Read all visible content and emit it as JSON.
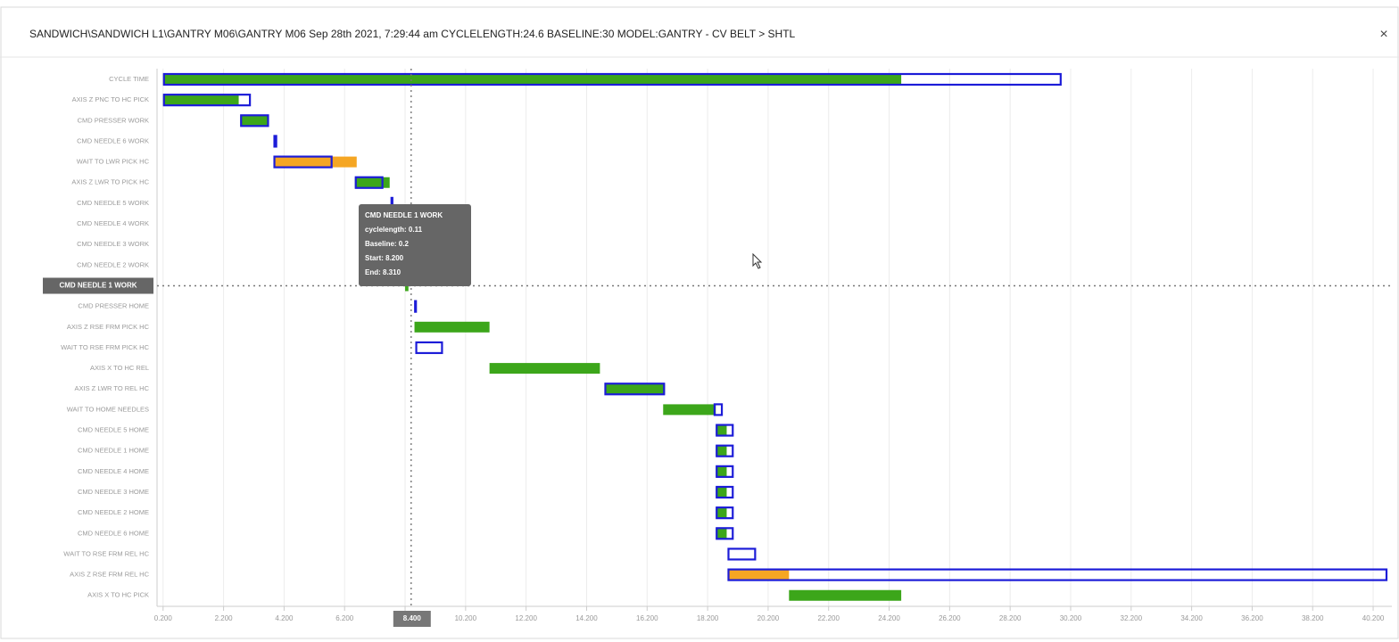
{
  "chart_data": {
    "type": "gantt",
    "title": "SANDWICH\\SANDWICH L1\\GANTRY M06\\GANTRY M06 Sep 28th 2021, 7:29:44 am CYCLELENGTH:24.6 BASELINE:30 MODEL:GANTRY - CV BELT > SHTL",
    "close_label": "×",
    "categories": [
      "CYCLE TIME",
      "AXIS Z PNC TO HC PICK",
      "CMD PRESSER WORK",
      "CMD NEEDLE 6 WORK",
      "WAIT TO LWR PICK HC",
      "AXIS Z LWR TO PICK HC",
      "CMD NEEDLE 5 WORK",
      "CMD NEEDLE 4 WORK",
      "CMD NEEDLE 3 WORK",
      "CMD NEEDLE 2 WORK",
      "CMD NEEDLE 1 WORK",
      "CMD PRESSER HOME",
      "AXIS Z RSE FRM PICK HC",
      "WAIT TO RSE FRM PICK HC",
      "AXIS X TO HC REL",
      "AXIS Z LWR TO REL HC",
      "WAIT TO HOME NEEDLES",
      "CMD NEEDLE 5 HOME",
      "CMD NEEDLE 1 HOME",
      "CMD NEEDLE 4 HOME",
      "CMD NEEDLE 3 HOME",
      "CMD NEEDLE 2 HOME",
      "CMD NEEDLE 6 HOME",
      "WAIT TO RSE FRM REL HC",
      "AXIS Z RSE FRM REL HC",
      "AXIS X TO HC PICK"
    ],
    "actual": [
      [
        0.2,
        24.6
      ],
      [
        0.2,
        2.7
      ],
      [
        2.75,
        3.7
      ],
      [
        3.85,
        3.95
      ],
      [
        3.85,
        6.6
      ],
      [
        6.54,
        7.69
      ],
      null,
      null,
      null,
      null,
      [
        8.2,
        8.31
      ],
      null,
      [
        8.51,
        10.99
      ],
      null,
      [
        10.99,
        14.64
      ],
      [
        14.79,
        16.79
      ],
      [
        16.73,
        18.47
      ],
      [
        18.47,
        18.83
      ],
      [
        18.47,
        18.83
      ],
      [
        18.47,
        18.83
      ],
      [
        18.47,
        18.83
      ],
      [
        18.47,
        18.83
      ],
      [
        18.47,
        18.83
      ],
      null,
      [
        18.86,
        20.89
      ],
      [
        20.89,
        24.6
      ]
    ],
    "actual_colors": [
      "#3ca61a",
      "#3ca61a",
      "#3ca61a",
      "#3ca61a",
      "#f5a623",
      "#3ca61a",
      null,
      null,
      null,
      null,
      "#3ca61a",
      null,
      "#3ca61a",
      null,
      "#3ca61a",
      "#3ca61a",
      "#3ca61a",
      "#3ca61a",
      "#3ca61a",
      "#3ca61a",
      "#3ca61a",
      "#3ca61a",
      "#3ca61a",
      null,
      "#f5a623",
      "#3ca61a"
    ],
    "baseline": [
      [
        0.2,
        29.9
      ],
      [
        0.2,
        3.1
      ],
      [
        2.75,
        3.7
      ],
      [
        3.85,
        3.97
      ],
      [
        3.85,
        5.8
      ],
      [
        6.54,
        7.48
      ],
      [
        7.72,
        7.81
      ],
      null,
      null,
      null,
      null,
      [
        8.5,
        8.53
      ],
      null,
      [
        8.54,
        9.45
      ],
      null,
      [
        14.79,
        16.79
      ],
      [
        18.4,
        18.7
      ],
      [
        18.47,
        19.06
      ],
      [
        18.47,
        19.06
      ],
      [
        18.47,
        19.06
      ],
      [
        18.47,
        19.06
      ],
      [
        18.47,
        19.06
      ],
      [
        18.47,
        19.06
      ],
      [
        18.86,
        19.8
      ],
      [
        18.86,
        40.67
      ],
      null
    ],
    "baseline_color": "#1c1cd8",
    "xlim": [
      0,
      40.7
    ],
    "xticks": [
      {
        "value": 0.2,
        "label": "0.200"
      },
      {
        "value": 2.2,
        "label": "2.200"
      },
      {
        "value": 4.2,
        "label": "4.200"
      },
      {
        "value": 6.2,
        "label": "6.200"
      },
      {
        "value": 8.2,
        "label": "8.200"
      },
      {
        "value": 10.2,
        "label": "10.200"
      },
      {
        "value": 12.2,
        "label": "12.200"
      },
      {
        "value": 14.2,
        "label": "14.200"
      },
      {
        "value": 16.2,
        "label": "16.200"
      },
      {
        "value": 18.2,
        "label": "18.200"
      },
      {
        "value": 20.2,
        "label": "20.200"
      },
      {
        "value": 22.2,
        "label": "22.200"
      },
      {
        "value": 24.2,
        "label": "24.200"
      },
      {
        "value": 26.2,
        "label": "26.200"
      },
      {
        "value": 28.2,
        "label": "28.200"
      },
      {
        "value": 30.2,
        "label": "30.200"
      },
      {
        "value": 32.2,
        "label": "32.200"
      },
      {
        "value": 34.2,
        "label": "34.200"
      },
      {
        "value": 36.2,
        "label": "36.200"
      },
      {
        "value": 38.2,
        "label": "38.200"
      },
      {
        "value": 40.2,
        "label": "40.200"
      }
    ],
    "grid": true,
    "crosshair": {
      "x": {
        "value": 8.4,
        "label": "8.400"
      },
      "category_index": 10
    },
    "tooltip": {
      "title": "CMD NEEDLE 1 WORK",
      "lines": [
        "cyclelength: 0.11",
        "Baseline: 0.2",
        "Start: 8.200",
        "End: 8.310"
      ]
    }
  }
}
